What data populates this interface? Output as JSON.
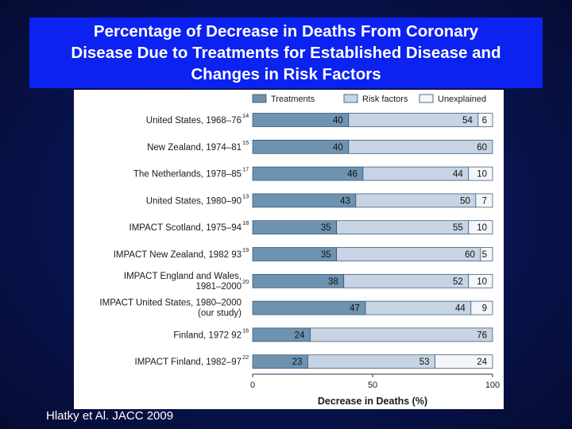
{
  "slide": {
    "title_lines": [
      "Percentage of Decrease in Deaths From Coronary",
      "Disease Due to Treatments for Established Disease and",
      "Changes in Risk Factors"
    ],
    "citation": "Hlatky et Al. JACC 2009"
  },
  "colors": {
    "treatments": "#6e93b1",
    "risk_factors": "#c6d4e3",
    "unexplained": "#f4f6f9",
    "bar_outline": "#2a4b6b",
    "title_box": "#0c22f0"
  },
  "chart_data": {
    "type": "bar",
    "orientation": "horizontal",
    "stacked": true,
    "categories": [
      {
        "label": [
          "United States, 1968–76"
        ],
        "sup": "14"
      },
      {
        "label": [
          "New Zealand, 1974–81"
        ],
        "sup": "15"
      },
      {
        "label": [
          "The Netherlands, 1978–85"
        ],
        "sup": "17"
      },
      {
        "label": [
          "United States, 1980–90"
        ],
        "sup": "13"
      },
      {
        "label": [
          "IMPACT Scotland, 1975–94"
        ],
        "sup": "18"
      },
      {
        "label": [
          "IMPACT New Zealand, 1982 93"
        ],
        "sup": "19"
      },
      {
        "label": [
          "IMPACT England and Wales,",
          "1981–2000"
        ],
        "sup": "20"
      },
      {
        "label": [
          "IMPACT United States, 1980–2000",
          "(our study)"
        ],
        "sup": ""
      },
      {
        "label": [
          "Finland, 1972 92"
        ],
        "sup": "16"
      },
      {
        "label": [
          "IMPACT Finland, 1982–97"
        ],
        "sup": "22"
      }
    ],
    "series": [
      {
        "name": "Treatments",
        "values": [
          40,
          40,
          46,
          43,
          35,
          35,
          38,
          47,
          24,
          23
        ]
      },
      {
        "name": "Risk factors",
        "values": [
          54,
          60,
          44,
          50,
          55,
          60,
          52,
          44,
          76,
          53
        ]
      },
      {
        "name": "Unexplained",
        "values": [
          6,
          0,
          10,
          7,
          10,
          5,
          10,
          9,
          0,
          24
        ]
      }
    ],
    "xlabel": "Decrease in Deaths (%)",
    "xlim": [
      0,
      100
    ],
    "xticks": [
      0,
      50,
      100
    ],
    "legend_position": "top"
  }
}
